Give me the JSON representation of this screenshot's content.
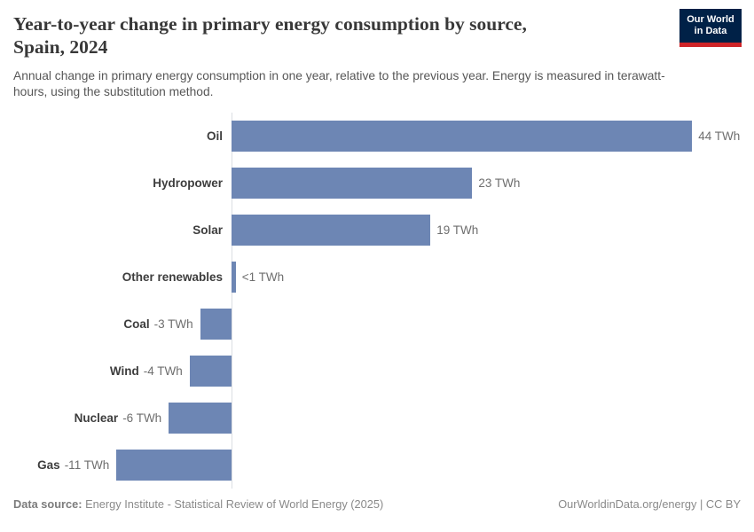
{
  "header": {
    "title_line1": "Year-to-year change in primary energy consumption by source,",
    "title_line2": "Spain, 2024",
    "subtitle": "Annual change in primary energy consumption in one year, relative to the previous year. Energy is measured in terawatt-hours, using the substitution method."
  },
  "logo": {
    "line1": "Our World",
    "line2": "in Data"
  },
  "chart_data": {
    "type": "bar",
    "orientation": "horizontal",
    "title": "Year-to-year change in primary energy consumption by source, Spain, 2024",
    "unit": "TWh",
    "categories": [
      "Oil",
      "Hydropower",
      "Solar",
      "Other renewables",
      "Coal",
      "Wind",
      "Nuclear",
      "Gas"
    ],
    "values": [
      44,
      23,
      19,
      0.4,
      -3,
      -4,
      -6,
      -11
    ],
    "value_labels": [
      "44 TWh",
      "23 TWh",
      "19 TWh",
      "<1 TWh",
      "-3 TWh",
      "-4 TWh",
      "-6 TWh",
      "-11 TWh"
    ],
    "xlim": [
      -11,
      48
    ],
    "grid": false,
    "legend": false
  },
  "footer": {
    "data_source_label": "Data source:",
    "data_source_value": "Energy Institute - Statistical Review of World Energy (2025)",
    "attribution": "OurWorldinData.org/energy | CC BY"
  },
  "colors": {
    "bar": "#6d86b4",
    "axis_line": "#dbdee3",
    "logo_bg": "#002147",
    "logo_stripe": "#cf2428",
    "title_text": "#383838",
    "subtitle_text": "#575757",
    "category_text": "#3d3d3d",
    "value_text": "#6e6e6e",
    "footer_text": "#8a8a8a"
  }
}
